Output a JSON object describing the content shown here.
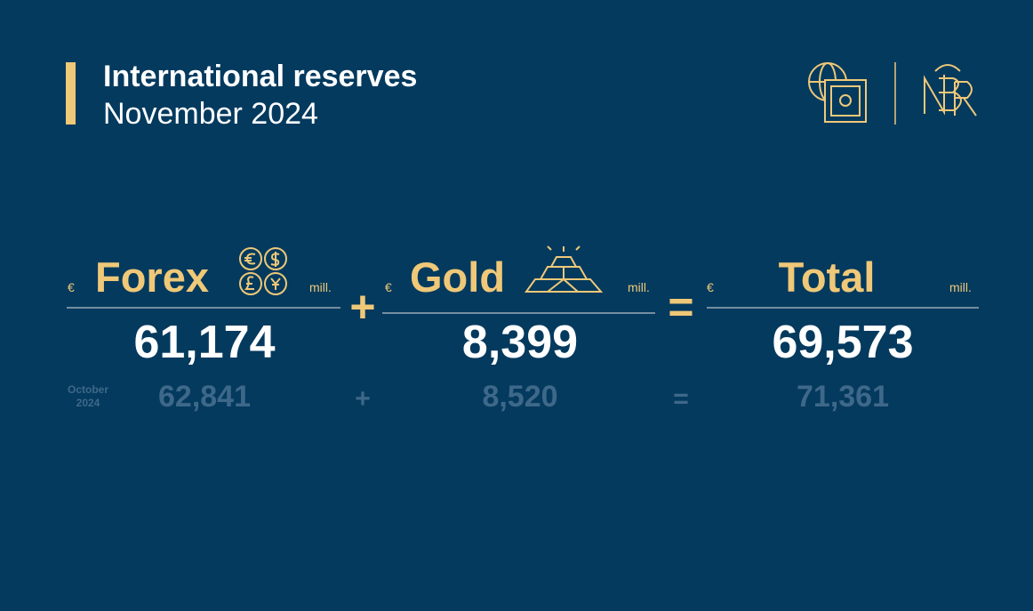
{
  "header": {
    "title": "International reserves",
    "subtitle": "November 2024"
  },
  "previous_period": [
    "October",
    "2024"
  ],
  "columns": [
    {
      "currency": "€",
      "name": "Forex",
      "unit": "mill.",
      "value": "61,174",
      "previous": "62,841"
    },
    {
      "currency": "€",
      "name": "Gold",
      "unit": "mill.",
      "value": "8,399",
      "previous": "8,520"
    },
    {
      "currency": "€",
      "name": "Total",
      "unit": "mill.",
      "value": "69,573",
      "previous": "71,361"
    }
  ],
  "operators": [
    {
      "symbol": "+",
      "previous_symbol": "+"
    },
    {
      "symbol": "=",
      "previous_symbol": "="
    }
  ]
}
